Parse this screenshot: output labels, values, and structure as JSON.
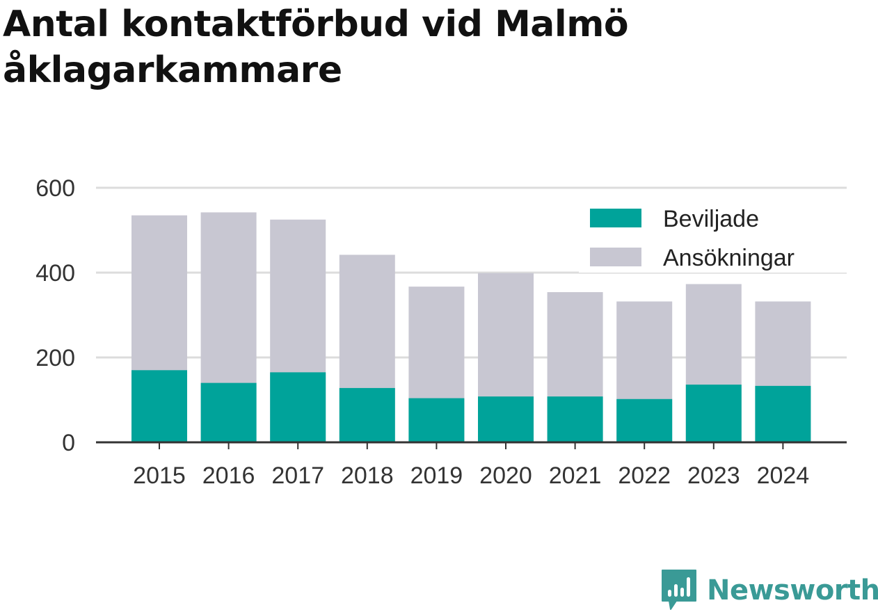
{
  "title": "Antal kontaktförbud vid Malmö åklagarkammare",
  "brand": {
    "name": "Newsworthy",
    "logo_icon": "newsworthy-chart-bubble-icon",
    "color": "#3a9a96"
  },
  "chart_data": {
    "type": "bar",
    "stacked": false,
    "overlay": true,
    "categories": [
      "2015",
      "2016",
      "2017",
      "2018",
      "2019",
      "2020",
      "2021",
      "2022",
      "2023",
      "2024"
    ],
    "series": [
      {
        "name": "Beviljade",
        "color": "#00a39a",
        "values": [
          170,
          140,
          165,
          128,
          104,
          108,
          108,
          102,
          136,
          133
        ]
      },
      {
        "name": "Ansökningar",
        "color": "#c8c7d2",
        "values": [
          535,
          542,
          525,
          442,
          367,
          399,
          354,
          332,
          373,
          332
        ]
      }
    ],
    "yticks": [
      0,
      200,
      400,
      600
    ],
    "ylim": [
      0,
      600
    ],
    "grid": true,
    "legend": "top-right",
    "xlabel": "",
    "ylabel": ""
  }
}
